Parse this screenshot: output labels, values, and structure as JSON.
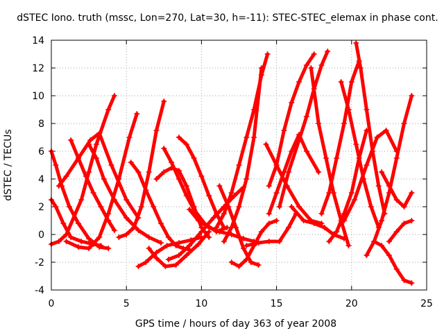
{
  "chart_data": {
    "type": "scatter",
    "title": "dSTEC Iono. truth (mssc, Lon=270, Lat=30, h=-11): STEC-STEC_elemax in phase cont.",
    "xlabel": "GPS time / hours of day 363 of year 2008",
    "ylabel": "dSTEC  / TECUs",
    "xlim": [
      0,
      25
    ],
    "ylim": [
      -4,
      14
    ],
    "x_ticks": [
      "0",
      "5",
      "10",
      "15",
      "20",
      "25"
    ],
    "y_ticks": [
      "-4",
      "-2",
      "0",
      "2",
      "4",
      "6",
      "8",
      "10",
      "12",
      "14"
    ],
    "grid": true,
    "marker": "+",
    "series_color": "#ff0000",
    "series": [
      {
        "x": [
          0.0,
          0.5,
          1.0,
          2.0,
          2.5,
          3.0,
          3.8,
          4.2
        ],
        "y": [
          -0.7,
          -0.5,
          0.0,
          2.5,
          4.5,
          6.5,
          9.0,
          10.0
        ]
      },
      {
        "x": [
          1.0,
          1.8,
          2.5,
          3.2,
          3.8,
          4.5,
          5.2,
          5.7
        ],
        "y": [
          -0.5,
          -0.9,
          -1.0,
          -0.2,
          1.5,
          4.0,
          7.0,
          8.7
        ]
      },
      {
        "x": [
          4.5,
          5.0,
          5.5,
          6.0,
          6.5,
          7.0,
          7.5
        ],
        "y": [
          -0.2,
          0.0,
          0.5,
          2.0,
          4.5,
          7.5,
          9.6
        ]
      },
      {
        "x": [
          0.0,
          0.3,
          0.7,
          1.2,
          1.8,
          2.5,
          3.2,
          3.8
        ],
        "y": [
          6.0,
          5.0,
          3.5,
          2.0,
          0.8,
          -0.3,
          -0.9,
          -1.0
        ]
      },
      {
        "x": [
          1.3,
          1.8,
          2.3,
          2.8,
          3.3,
          3.8,
          4.2
        ],
        "y": [
          6.8,
          5.5,
          4.2,
          3.0,
          2.0,
          1.0,
          0.3
        ]
      },
      {
        "x": [
          0.0,
          0.3,
          0.8,
          1.3,
          2.0,
          2.8,
          3.3
        ],
        "y": [
          2.5,
          2.0,
          0.8,
          -0.2,
          -0.5,
          -0.7,
          -0.8
        ]
      },
      {
        "x": [
          0.5,
          1.0,
          1.8,
          2.6,
          3.2,
          4.0,
          5.0,
          5.8
        ],
        "y": [
          3.5,
          4.2,
          5.5,
          6.8,
          7.3,
          5.0,
          2.5,
          1.2
        ]
      },
      {
        "x": [
          2.5,
          3.0,
          3.5,
          4.2,
          5.0,
          5.8,
          6.5,
          7.3
        ],
        "y": [
          6.5,
          5.5,
          4.0,
          2.5,
          1.2,
          0.3,
          -0.2,
          -0.6
        ]
      },
      {
        "x": [
          5.3,
          5.8,
          6.3,
          6.8,
          7.3,
          7.8,
          8.3,
          8.8,
          9.2
        ],
        "y": [
          5.2,
          4.5,
          3.2,
          2.0,
          0.8,
          -0.2,
          -0.8,
          -1.0,
          -1.1
        ]
      },
      {
        "x": [
          5.8,
          6.3,
          7.0,
          7.7,
          8.5,
          9.3,
          10.0
        ],
        "y": [
          -2.3,
          -2.0,
          -1.3,
          -0.8,
          -0.6,
          -0.4,
          -0.2
        ]
      },
      {
        "x": [
          6.5,
          7.0,
          7.6,
          8.3,
          9.0,
          9.8,
          10.5
        ],
        "y": [
          -1.0,
          -1.7,
          -2.3,
          -2.2,
          -1.5,
          -0.7,
          0.2
        ]
      },
      {
        "x": [
          7.5,
          8.0,
          8.5,
          9.0,
          9.5,
          10.2,
          11.0,
          11.7
        ],
        "y": [
          6.2,
          5.2,
          4.0,
          2.8,
          1.8,
          0.8,
          0.2,
          0.5
        ]
      },
      {
        "x": [
          8.5,
          9.0,
          9.5,
          10.0,
          10.5,
          11.0,
          11.5
        ],
        "y": [
          7.0,
          6.5,
          5.5,
          4.2,
          2.8,
          1.5,
          0.5
        ]
      },
      {
        "x": [
          7.0,
          7.5,
          8.0,
          8.5,
          9.0,
          9.5,
          10.0,
          10.5
        ],
        "y": [
          4.0,
          4.5,
          4.8,
          4.6,
          3.5,
          2.0,
          0.5,
          -0.2
        ]
      },
      {
        "x": [
          7.8,
          8.5,
          9.2,
          10.0,
          10.8,
          11.5,
          12.2,
          12.8
        ],
        "y": [
          -1.8,
          -1.5,
          -0.8,
          0.2,
          1.2,
          2.0,
          2.8,
          3.4
        ]
      },
      {
        "x": [
          9.2,
          9.8,
          10.5,
          11.2,
          12.0,
          12.8,
          13.5
        ],
        "y": [
          1.8,
          1.0,
          0.5,
          0.2,
          0.0,
          -0.3,
          -0.5
        ]
      },
      {
        "x": [
          11.0,
          11.5,
          12.0,
          12.5,
          13.0,
          13.5,
          14.0,
          14.4
        ],
        "y": [
          0.5,
          1.5,
          3.0,
          5.0,
          7.0,
          9.0,
          11.5,
          13.0
        ]
      },
      {
        "x": [
          11.5,
          12.0,
          12.5,
          13.0,
          13.5,
          14.0
        ],
        "y": [
          -0.5,
          0.5,
          2.0,
          4.0,
          7.0,
          12.0
        ]
      },
      {
        "x": [
          11.2,
          11.8,
          12.3,
          12.8,
          13.3,
          13.8
        ],
        "y": [
          3.5,
          2.0,
          0.5,
          -1.0,
          -2.0,
          -2.2
        ]
      },
      {
        "x": [
          12.0,
          12.5,
          13.0,
          13.5,
          14.0,
          14.5,
          15.0
        ],
        "y": [
          -2.0,
          -2.3,
          -1.8,
          -0.8,
          0.2,
          0.8,
          1.0
        ]
      },
      {
        "x": [
          13.0,
          13.8,
          14.5,
          15.2,
          15.8,
          16.3
        ],
        "y": [
          -0.8,
          -0.6,
          -0.5,
          -0.5,
          0.5,
          1.5
        ]
      },
      {
        "x": [
          14.5,
          15.0,
          15.5,
          16.0,
          16.5,
          17.0,
          17.5
        ],
        "y": [
          3.5,
          5.0,
          7.5,
          9.5,
          11.0,
          12.2,
          13.0
        ]
      },
      {
        "x": [
          15.2,
          15.8,
          16.5,
          17.0,
          17.5,
          18.0,
          18.4
        ],
        "y": [
          2.0,
          4.5,
          6.8,
          8.5,
          10.5,
          12.2,
          13.2
        ]
      },
      {
        "x": [
          14.5,
          15.0,
          15.5,
          16.0,
          16.5,
          17.0,
          17.8
        ],
        "y": [
          1.5,
          3.0,
          4.5,
          6.0,
          7.2,
          6.0,
          4.5
        ]
      },
      {
        "x": [
          14.3,
          15.0,
          15.7,
          16.5,
          17.3,
          18.0
        ],
        "y": [
          6.5,
          5.0,
          3.5,
          2.0,
          1.0,
          0.8
        ]
      },
      {
        "x": [
          16.0,
          16.8,
          17.5,
          18.2,
          18.8,
          19.5
        ],
        "y": [
          2.0,
          1.0,
          0.8,
          0.5,
          0.0,
          -0.3
        ]
      },
      {
        "x": [
          17.3,
          17.8,
          18.3,
          18.8,
          19.3,
          19.8
        ],
        "y": [
          12.0,
          8.0,
          5.5,
          3.0,
          1.0,
          -0.8
        ]
      },
      {
        "x": [
          18.0,
          18.5,
          19.0,
          19.5,
          20.0,
          20.5
        ],
        "y": [
          1.5,
          3.0,
          5.5,
          8.0,
          11.0,
          12.5
        ]
      },
      {
        "x": [
          19.3,
          19.8,
          20.3,
          20.8,
          21.3,
          21.8
        ],
        "y": [
          11.0,
          9.0,
          6.5,
          4.0,
          2.0,
          0.5
        ]
      },
      {
        "x": [
          18.5,
          19.0,
          19.5,
          20.0,
          20.5,
          21.0
        ],
        "y": [
          -0.5,
          0.2,
          1.5,
          3.0,
          5.5,
          7.5
        ]
      },
      {
        "x": [
          20.3,
          20.6,
          21.0,
          21.4,
          21.8,
          22.2
        ],
        "y": [
          13.8,
          12.0,
          9.0,
          6.0,
          3.5,
          1.5
        ]
      },
      {
        "x": [
          19.5,
          20.2,
          21.0,
          21.7,
          22.3,
          23.0
        ],
        "y": [
          1.0,
          2.5,
          5.0,
          7.0,
          7.5,
          6.0
        ]
      },
      {
        "x": [
          21.0,
          21.5,
          22.0,
          22.5,
          23.0,
          23.5,
          24.0
        ],
        "y": [
          -1.5,
          -0.5,
          1.0,
          3.0,
          5.5,
          8.0,
          10.0
        ]
      },
      {
        "x": [
          22.0,
          22.5,
          23.0,
          23.5,
          24.0
        ],
        "y": [
          4.5,
          3.5,
          2.5,
          2.0,
          3.0
        ]
      },
      {
        "x": [
          21.5,
          22.0,
          22.5,
          23.0,
          23.5,
          24.0
        ],
        "y": [
          -0.5,
          -0.8,
          -1.5,
          -2.5,
          -3.3,
          -3.5
        ]
      },
      {
        "x": [
          22.5,
          23.0,
          23.5,
          24.0
        ],
        "y": [
          -0.5,
          0.2,
          0.8,
          1.0
        ]
      }
    ]
  }
}
